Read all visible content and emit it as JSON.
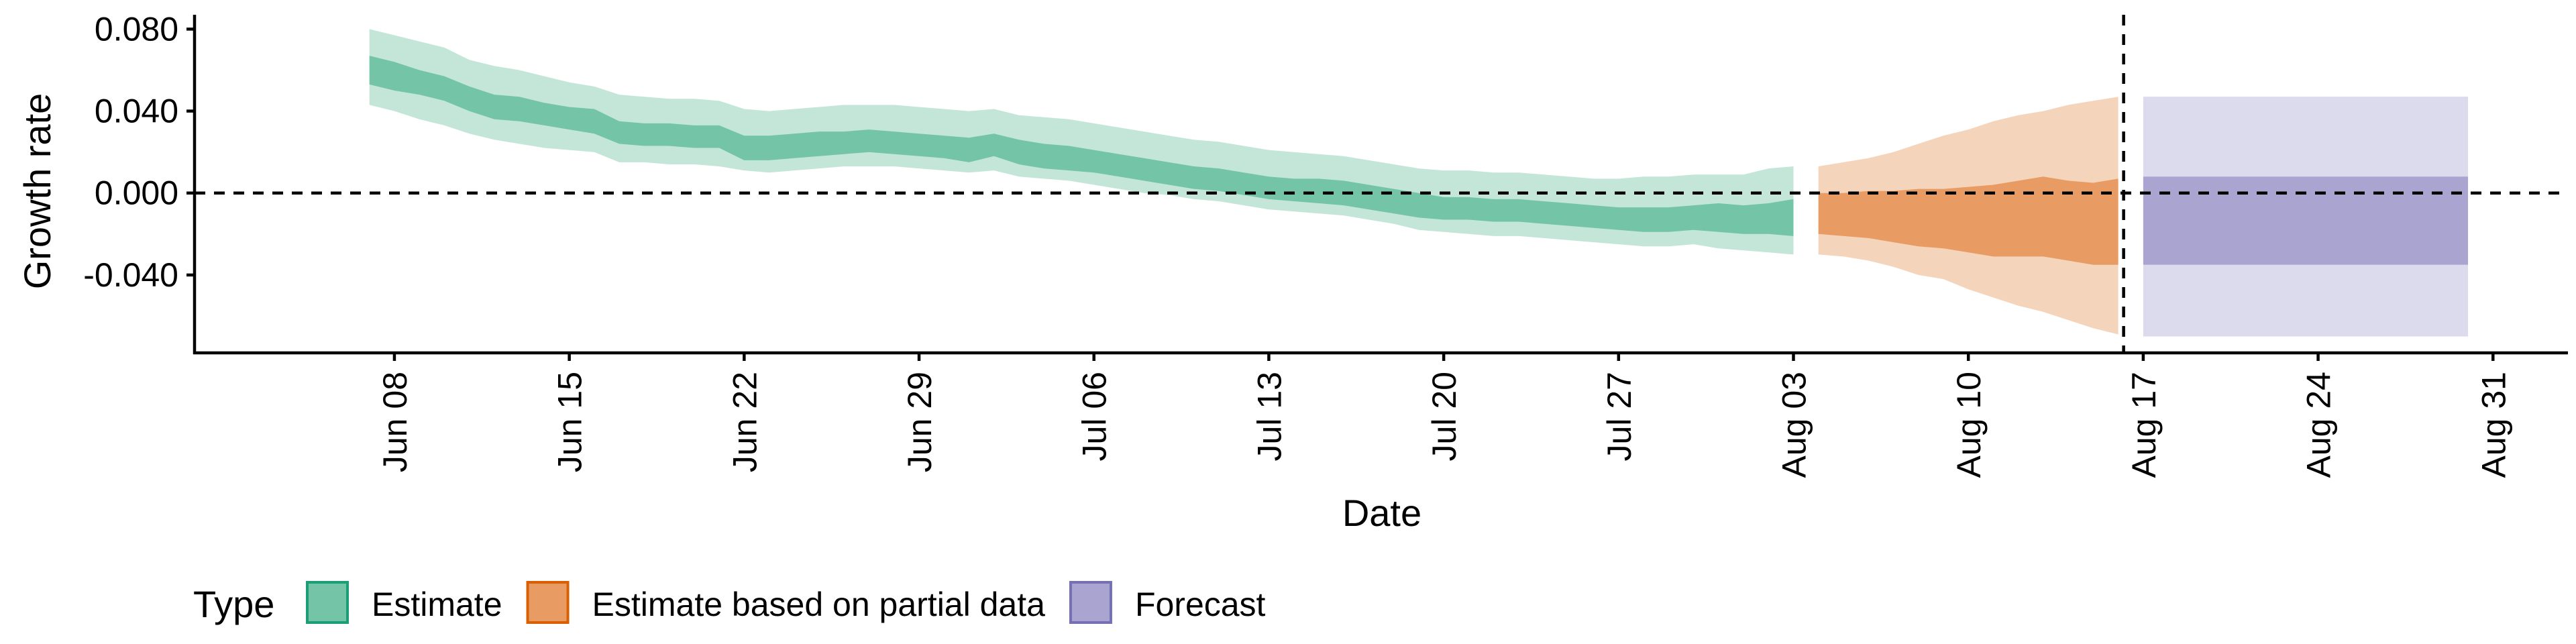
{
  "chart_data": {
    "type": "area",
    "xlabel": "Date",
    "ylabel": "Growth rate",
    "yticks": [
      {
        "value": 0.08,
        "label": "0.080"
      },
      {
        "value": 0.04,
        "label": "0.040"
      },
      {
        "value": 0.0,
        "label": "0.000"
      },
      {
        "value": -0.04,
        "label": "-0.040"
      }
    ],
    "ylim": [
      -0.078,
      0.087
    ],
    "xlim": [
      "2020-05-31",
      "2020-09-03"
    ],
    "xticks": [
      {
        "date": "2020-06-08",
        "label": "Jun 08"
      },
      {
        "date": "2020-06-15",
        "label": "Jun 15"
      },
      {
        "date": "2020-06-22",
        "label": "Jun 22"
      },
      {
        "date": "2020-06-29",
        "label": "Jun 29"
      },
      {
        "date": "2020-07-06",
        "label": "Jul 06"
      },
      {
        "date": "2020-07-13",
        "label": "Jul 13"
      },
      {
        "date": "2020-07-20",
        "label": "Jul 20"
      },
      {
        "date": "2020-07-27",
        "label": "Jul 27"
      },
      {
        "date": "2020-08-03",
        "label": "Aug 03"
      },
      {
        "date": "2020-08-10",
        "label": "Aug 10"
      },
      {
        "date": "2020-08-17",
        "label": "Aug 17"
      },
      {
        "date": "2020-08-24",
        "label": "Aug 24"
      },
      {
        "date": "2020-08-31",
        "label": "Aug 31"
      }
    ],
    "hline": 0,
    "vline": "2020-08-16",
    "legend": {
      "title": "Type",
      "position": "bottom",
      "entries": [
        {
          "label": "Estimate",
          "fill": "#74c4a8",
          "stroke": "#1b9e77"
        },
        {
          "label": "Estimate based on partial data",
          "fill": "#e89b62",
          "stroke": "#d95f02"
        },
        {
          "label": "Forecast",
          "fill": "#a9a5d0",
          "stroke": "#7570b3"
        }
      ]
    },
    "series": [
      {
        "name": "Estimate",
        "outer_fill": "#c3e6d9",
        "inner_fill": "#74c4a8",
        "points": [
          {
            "date": "2020-06-07",
            "lo90": 0.043,
            "lo50": 0.053,
            "hi50": 0.067,
            "hi90": 0.08
          },
          {
            "date": "2020-06-08",
            "lo90": 0.04,
            "lo50": 0.05,
            "hi50": 0.064,
            "hi90": 0.077
          },
          {
            "date": "2020-06-09",
            "lo90": 0.036,
            "lo50": 0.048,
            "hi50": 0.06,
            "hi90": 0.074
          },
          {
            "date": "2020-06-10",
            "lo90": 0.033,
            "lo50": 0.045,
            "hi50": 0.057,
            "hi90": 0.071
          },
          {
            "date": "2020-06-11",
            "lo90": 0.029,
            "lo50": 0.04,
            "hi50": 0.052,
            "hi90": 0.065
          },
          {
            "date": "2020-06-12",
            "lo90": 0.026,
            "lo50": 0.036,
            "hi50": 0.048,
            "hi90": 0.062
          },
          {
            "date": "2020-06-13",
            "lo90": 0.024,
            "lo50": 0.035,
            "hi50": 0.047,
            "hi90": 0.06
          },
          {
            "date": "2020-06-14",
            "lo90": 0.022,
            "lo50": 0.033,
            "hi50": 0.044,
            "hi90": 0.057
          },
          {
            "date": "2020-06-15",
            "lo90": 0.021,
            "lo50": 0.031,
            "hi50": 0.042,
            "hi90": 0.054
          },
          {
            "date": "2020-06-16",
            "lo90": 0.02,
            "lo50": 0.029,
            "hi50": 0.041,
            "hi90": 0.052
          },
          {
            "date": "2020-06-17",
            "lo90": 0.015,
            "lo50": 0.024,
            "hi50": 0.035,
            "hi90": 0.048
          },
          {
            "date": "2020-06-18",
            "lo90": 0.015,
            "lo50": 0.023,
            "hi50": 0.034,
            "hi90": 0.047
          },
          {
            "date": "2020-06-19",
            "lo90": 0.014,
            "lo50": 0.023,
            "hi50": 0.034,
            "hi90": 0.046
          },
          {
            "date": "2020-06-20",
            "lo90": 0.014,
            "lo50": 0.022,
            "hi50": 0.033,
            "hi90": 0.046
          },
          {
            "date": "2020-06-21",
            "lo90": 0.013,
            "lo50": 0.022,
            "hi50": 0.033,
            "hi90": 0.045
          },
          {
            "date": "2020-06-22",
            "lo90": 0.011,
            "lo50": 0.016,
            "hi50": 0.028,
            "hi90": 0.041
          },
          {
            "date": "2020-06-23",
            "lo90": 0.01,
            "lo50": 0.016,
            "hi50": 0.028,
            "hi90": 0.04
          },
          {
            "date": "2020-06-24",
            "lo90": 0.011,
            "lo50": 0.017,
            "hi50": 0.029,
            "hi90": 0.041
          },
          {
            "date": "2020-06-25",
            "lo90": 0.012,
            "lo50": 0.018,
            "hi50": 0.03,
            "hi90": 0.042
          },
          {
            "date": "2020-06-26",
            "lo90": 0.013,
            "lo50": 0.019,
            "hi50": 0.03,
            "hi90": 0.043
          },
          {
            "date": "2020-06-27",
            "lo90": 0.013,
            "lo50": 0.02,
            "hi50": 0.031,
            "hi90": 0.043
          },
          {
            "date": "2020-06-28",
            "lo90": 0.013,
            "lo50": 0.019,
            "hi50": 0.03,
            "hi90": 0.043
          },
          {
            "date": "2020-06-29",
            "lo90": 0.012,
            "lo50": 0.018,
            "hi50": 0.029,
            "hi90": 0.042
          },
          {
            "date": "2020-06-30",
            "lo90": 0.011,
            "lo50": 0.017,
            "hi50": 0.028,
            "hi90": 0.041
          },
          {
            "date": "2020-07-01",
            "lo90": 0.01,
            "lo50": 0.015,
            "hi50": 0.027,
            "hi90": 0.04
          },
          {
            "date": "2020-07-02",
            "lo90": 0.011,
            "lo50": 0.018,
            "hi50": 0.029,
            "hi90": 0.041
          },
          {
            "date": "2020-07-03",
            "lo90": 0.008,
            "lo50": 0.014,
            "hi50": 0.026,
            "hi90": 0.038
          },
          {
            "date": "2020-07-04",
            "lo90": 0.007,
            "lo50": 0.012,
            "hi50": 0.024,
            "hi90": 0.037
          },
          {
            "date": "2020-07-05",
            "lo90": 0.006,
            "lo50": 0.011,
            "hi50": 0.023,
            "hi90": 0.036
          },
          {
            "date": "2020-07-06",
            "lo90": 0.004,
            "lo50": 0.01,
            "hi50": 0.021,
            "hi90": 0.034
          },
          {
            "date": "2020-07-07",
            "lo90": 0.002,
            "lo50": 0.008,
            "hi50": 0.019,
            "hi90": 0.032
          },
          {
            "date": "2020-07-08",
            "lo90": 0.0,
            "lo50": 0.006,
            "hi50": 0.017,
            "hi90": 0.03
          },
          {
            "date": "2020-07-09",
            "lo90": -0.001,
            "lo50": 0.004,
            "hi50": 0.015,
            "hi90": 0.028
          },
          {
            "date": "2020-07-10",
            "lo90": -0.003,
            "lo50": 0.002,
            "hi50": 0.013,
            "hi90": 0.026
          },
          {
            "date": "2020-07-11",
            "lo90": -0.004,
            "lo50": 0.001,
            "hi50": 0.012,
            "hi90": 0.025
          },
          {
            "date": "2020-07-12",
            "lo90": -0.006,
            "lo50": -0.001,
            "hi50": 0.01,
            "hi90": 0.023
          },
          {
            "date": "2020-07-13",
            "lo90": -0.008,
            "lo50": -0.003,
            "hi50": 0.008,
            "hi90": 0.021
          },
          {
            "date": "2020-07-14",
            "lo90": -0.009,
            "lo50": -0.004,
            "hi50": 0.007,
            "hi90": 0.02
          },
          {
            "date": "2020-07-15",
            "lo90": -0.01,
            "lo50": -0.005,
            "hi50": 0.007,
            "hi90": 0.019
          },
          {
            "date": "2020-07-16",
            "lo90": -0.011,
            "lo50": -0.006,
            "hi50": 0.006,
            "hi90": 0.018
          },
          {
            "date": "2020-07-17",
            "lo90": -0.013,
            "lo50": -0.008,
            "hi50": 0.004,
            "hi90": 0.016
          },
          {
            "date": "2020-07-18",
            "lo90": -0.015,
            "lo50": -0.01,
            "hi50": 0.002,
            "hi90": 0.014
          },
          {
            "date": "2020-07-19",
            "lo90": -0.018,
            "lo50": -0.012,
            "hi50": 0.0,
            "hi90": 0.012
          },
          {
            "date": "2020-07-20",
            "lo90": -0.019,
            "lo50": -0.013,
            "hi50": -0.002,
            "hi90": 0.011
          },
          {
            "date": "2020-07-21",
            "lo90": -0.02,
            "lo50": -0.013,
            "hi50": -0.002,
            "hi90": 0.011
          },
          {
            "date": "2020-07-22",
            "lo90": -0.021,
            "lo50": -0.014,
            "hi50": -0.003,
            "hi90": 0.01
          },
          {
            "date": "2020-07-23",
            "lo90": -0.021,
            "lo50": -0.014,
            "hi50": -0.003,
            "hi90": 0.01
          },
          {
            "date": "2020-07-24",
            "lo90": -0.022,
            "lo50": -0.015,
            "hi50": -0.004,
            "hi90": 0.009
          },
          {
            "date": "2020-07-25",
            "lo90": -0.023,
            "lo50": -0.016,
            "hi50": -0.005,
            "hi90": 0.008
          },
          {
            "date": "2020-07-26",
            "lo90": -0.024,
            "lo50": -0.017,
            "hi50": -0.006,
            "hi90": 0.007
          },
          {
            "date": "2020-07-27",
            "lo90": -0.025,
            "lo50": -0.018,
            "hi50": -0.007,
            "hi90": 0.007
          },
          {
            "date": "2020-07-28",
            "lo90": -0.026,
            "lo50": -0.019,
            "hi50": -0.007,
            "hi90": 0.008
          },
          {
            "date": "2020-07-29",
            "lo90": -0.026,
            "lo50": -0.019,
            "hi50": -0.007,
            "hi90": 0.008
          },
          {
            "date": "2020-07-30",
            "lo90": -0.025,
            "lo50": -0.018,
            "hi50": -0.006,
            "hi90": 0.009
          },
          {
            "date": "2020-07-31",
            "lo90": -0.027,
            "lo50": -0.019,
            "hi50": -0.005,
            "hi90": 0.009
          },
          {
            "date": "2020-08-01",
            "lo90": -0.028,
            "lo50": -0.02,
            "hi50": -0.006,
            "hi90": 0.009
          },
          {
            "date": "2020-08-02",
            "lo90": -0.029,
            "lo50": -0.02,
            "hi50": -0.005,
            "hi90": 0.012
          },
          {
            "date": "2020-08-03",
            "lo90": -0.03,
            "lo50": -0.021,
            "hi50": -0.003,
            "hi90": 0.013
          }
        ]
      },
      {
        "name": "Estimate based on partial data",
        "outer_fill": "#f5d4bc",
        "inner_fill": "#e89b62",
        "points": [
          {
            "date": "2020-08-04",
            "lo90": -0.03,
            "lo50": -0.02,
            "hi50": 0.0,
            "hi90": 0.013
          },
          {
            "date": "2020-08-05",
            "lo90": -0.031,
            "lo50": -0.021,
            "hi50": 0.0,
            "hi90": 0.015
          },
          {
            "date": "2020-08-06",
            "lo90": -0.033,
            "lo50": -0.022,
            "hi50": 0.001,
            "hi90": 0.017
          },
          {
            "date": "2020-08-07",
            "lo90": -0.036,
            "lo50": -0.024,
            "hi50": 0.001,
            "hi90": 0.02
          },
          {
            "date": "2020-08-08",
            "lo90": -0.04,
            "lo50": -0.026,
            "hi50": 0.002,
            "hi90": 0.024
          },
          {
            "date": "2020-08-09",
            "lo90": -0.042,
            "lo50": -0.027,
            "hi50": 0.002,
            "hi90": 0.028
          },
          {
            "date": "2020-08-10",
            "lo90": -0.047,
            "lo50": -0.029,
            "hi50": 0.003,
            "hi90": 0.031
          },
          {
            "date": "2020-08-11",
            "lo90": -0.051,
            "lo50": -0.031,
            "hi50": 0.004,
            "hi90": 0.035
          },
          {
            "date": "2020-08-12",
            "lo90": -0.055,
            "lo50": -0.031,
            "hi50": 0.006,
            "hi90": 0.038
          },
          {
            "date": "2020-08-13",
            "lo90": -0.058,
            "lo50": -0.031,
            "hi50": 0.008,
            "hi90": 0.04
          },
          {
            "date": "2020-08-14",
            "lo90": -0.062,
            "lo50": -0.033,
            "hi50": 0.006,
            "hi90": 0.043
          },
          {
            "date": "2020-08-15",
            "lo90": -0.066,
            "lo50": -0.035,
            "hi50": 0.005,
            "hi90": 0.045
          },
          {
            "date": "2020-08-16",
            "lo90": -0.069,
            "lo50": -0.035,
            "hi50": 0.007,
            "hi90": 0.047
          }
        ]
      },
      {
        "name": "Forecast",
        "outer_fill": "#dcdaed",
        "inner_fill": "#a9a5d0",
        "points": [
          {
            "date": "2020-08-17",
            "lo90": -0.07,
            "lo50": -0.035,
            "hi50": 0.008,
            "hi90": 0.047
          },
          {
            "date": "2020-08-30",
            "lo90": -0.07,
            "lo50": -0.035,
            "hi50": 0.008,
            "hi90": 0.047
          }
        ]
      }
    ]
  }
}
